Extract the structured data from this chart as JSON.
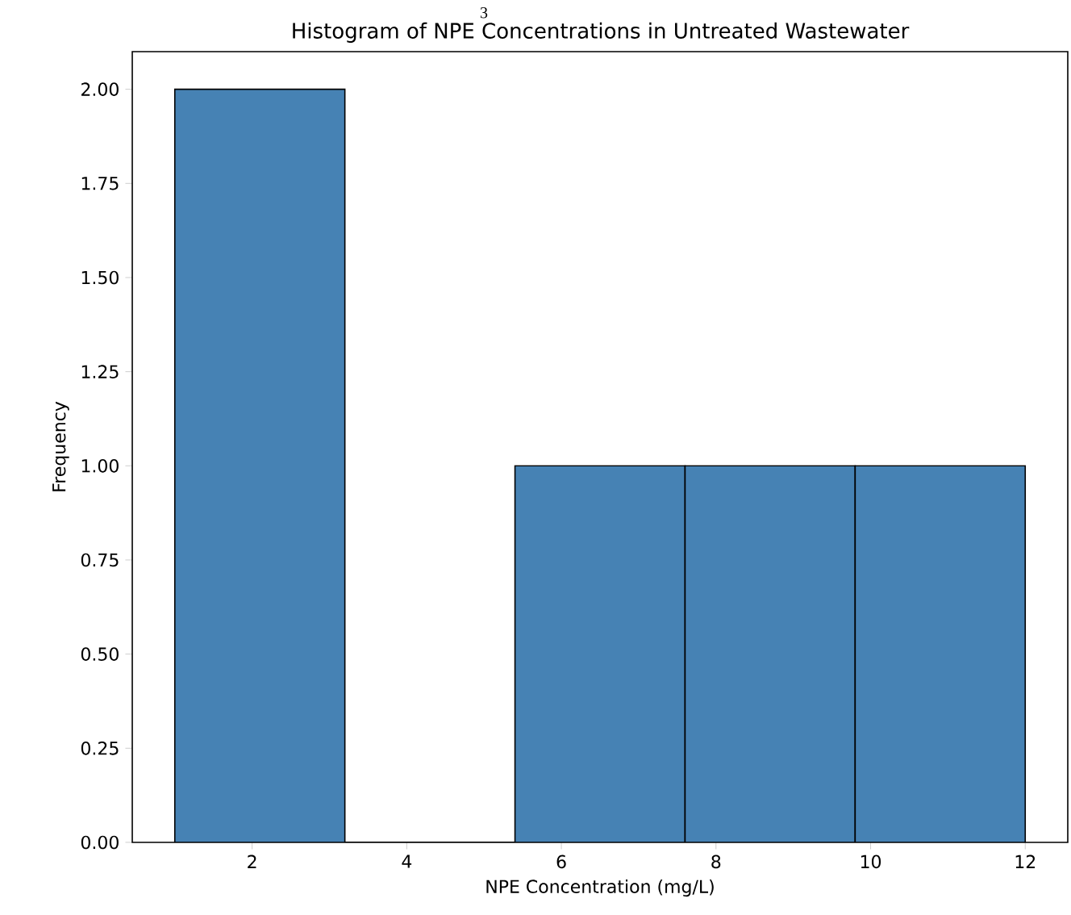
{
  "chart_data": {
    "type": "histogram",
    "title": "Histogram of NPE Concentrations in Untreated Wastewater",
    "xlabel": "NPE Concentration (mg/L)",
    "ylabel": "Frequency",
    "bins": [
      1,
      3.2,
      5.4,
      7.6,
      9.8,
      12
    ],
    "values": [
      2,
      0,
      1,
      1,
      1
    ],
    "color": "#4682b4",
    "xlim": [
      0.45,
      12.55
    ],
    "xticks": [
      2,
      4,
      6,
      8,
      10,
      12
    ],
    "ylim": [
      0,
      2.1
    ],
    "yticks": [
      {
        "value": 0,
        "label": "0.00"
      },
      {
        "value": 0.25,
        "label": "0.25"
      },
      {
        "value": 0.5,
        "label": "0.50"
      },
      {
        "value": 0.75,
        "label": "0.75"
      },
      {
        "value": 1,
        "label": "1.00"
      },
      {
        "value": 1.25,
        "label": "1.25"
      },
      {
        "value": 1.5,
        "label": "1.50"
      },
      {
        "value": 1.75,
        "label": "1.75"
      },
      {
        "value": 2,
        "label": "2.00"
      }
    ],
    "annotations": [
      "3"
    ]
  }
}
